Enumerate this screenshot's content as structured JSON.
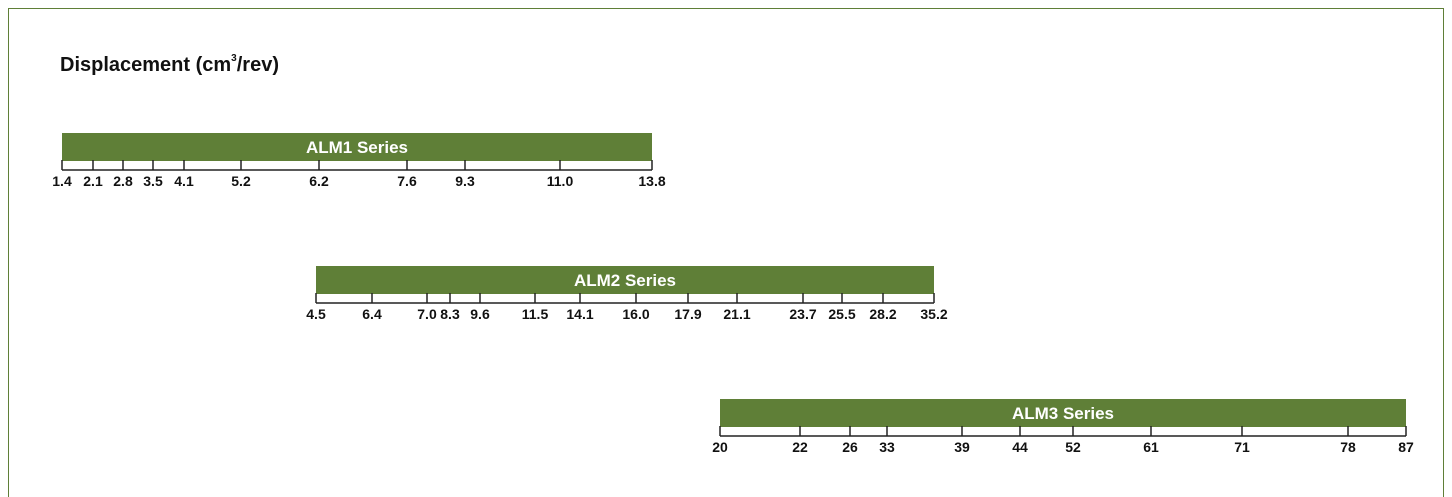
{
  "chart_data": {
    "type": "range-bar",
    "title": "Displacement (cm",
    "title_sup": "3",
    "title_suffix": "/rev)",
    "bar_color": "#5f7f37",
    "series": [
      {
        "name": "ALM1 Series",
        "ticks": [
          "1.4",
          "2.1",
          "2.8",
          "3.5",
          "4.1",
          "5.2",
          "6.2",
          "7.6",
          "9.3",
          "11.0",
          "13.8"
        ]
      },
      {
        "name": "ALM2 Series",
        "ticks": [
          "4.5",
          "6.4",
          "7.0",
          "8.3",
          "9.6",
          "11.5",
          "14.1",
          "16.0",
          "17.9",
          "21.1",
          "23.7",
          "25.5",
          "28.2",
          "35.2"
        ]
      },
      {
        "name": "ALM3 Series",
        "ticks": [
          "20",
          "22",
          "26",
          "33",
          "39",
          "44",
          "52",
          "61",
          "71",
          "78",
          "87"
        ]
      }
    ]
  }
}
